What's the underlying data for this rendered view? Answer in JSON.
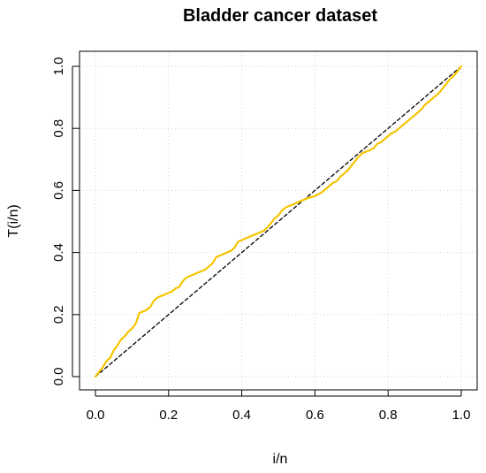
{
  "chart_data": {
    "type": "line",
    "title": "Bladder cancer dataset",
    "xlabel": "i/n",
    "ylabel": "T(i/n)",
    "xlim": [
      0.0,
      1.0
    ],
    "ylim": [
      0.0,
      1.0
    ],
    "x_ticks": [
      "0.0",
      "0.2",
      "0.4",
      "0.6",
      "0.8",
      "1.0"
    ],
    "y_ticks": [
      "0.0",
      "0.2",
      "0.4",
      "0.6",
      "0.8",
      "1.0"
    ],
    "grid": true,
    "series": [
      {
        "style": "solid",
        "color": "#F5C400",
        "x": [
          0.0,
          0.01,
          0.02,
          0.03,
          0.04,
          0.05,
          0.06,
          0.07,
          0.08,
          0.09,
          0.1,
          0.11,
          0.12,
          0.13,
          0.14,
          0.15,
          0.16,
          0.17,
          0.18,
          0.19,
          0.2,
          0.21,
          0.22,
          0.23,
          0.24,
          0.25,
          0.26,
          0.27,
          0.28,
          0.29,
          0.3,
          0.31,
          0.32,
          0.33,
          0.34,
          0.35,
          0.36,
          0.37,
          0.38,
          0.39,
          0.4,
          0.41,
          0.42,
          0.43,
          0.44,
          0.45,
          0.46,
          0.47,
          0.48,
          0.49,
          0.5,
          0.51,
          0.52,
          0.53,
          0.54,
          0.55,
          0.56,
          0.57,
          0.58,
          0.59,
          0.6,
          0.61,
          0.62,
          0.63,
          0.64,
          0.65,
          0.66,
          0.67,
          0.68,
          0.69,
          0.7,
          0.71,
          0.72,
          0.73,
          0.74,
          0.75,
          0.76,
          0.77,
          0.78,
          0.79,
          0.8,
          0.81,
          0.82,
          0.83,
          0.84,
          0.85,
          0.86,
          0.87,
          0.88,
          0.89,
          0.9,
          0.91,
          0.92,
          0.93,
          0.94,
          0.95,
          0.96,
          0.97,
          0.98,
          0.99,
          1.0
        ],
        "y": [
          0.0,
          0.015,
          0.03,
          0.05,
          0.06,
          0.085,
          0.1,
          0.12,
          0.13,
          0.145,
          0.155,
          0.17,
          0.205,
          0.21,
          0.215,
          0.225,
          0.245,
          0.255,
          0.26,
          0.265,
          0.27,
          0.275,
          0.285,
          0.29,
          0.31,
          0.32,
          0.325,
          0.33,
          0.335,
          0.34,
          0.345,
          0.355,
          0.365,
          0.385,
          0.39,
          0.395,
          0.4,
          0.405,
          0.415,
          0.435,
          0.44,
          0.445,
          0.45,
          0.455,
          0.46,
          0.465,
          0.47,
          0.48,
          0.495,
          0.51,
          0.52,
          0.535,
          0.545,
          0.55,
          0.555,
          0.56,
          0.565,
          0.57,
          0.575,
          0.578,
          0.582,
          0.588,
          0.595,
          0.605,
          0.615,
          0.625,
          0.63,
          0.645,
          0.655,
          0.665,
          0.68,
          0.695,
          0.71,
          0.72,
          0.725,
          0.73,
          0.735,
          0.75,
          0.755,
          0.765,
          0.775,
          0.785,
          0.79,
          0.8,
          0.81,
          0.82,
          0.83,
          0.84,
          0.85,
          0.86,
          0.875,
          0.885,
          0.895,
          0.905,
          0.915,
          0.93,
          0.945,
          0.96,
          0.97,
          0.985,
          1.0
        ]
      },
      {
        "style": "dashed",
        "color": "#000000",
        "x": [
          0.0,
          1.0
        ],
        "y": [
          0.0,
          1.0
        ]
      }
    ]
  }
}
